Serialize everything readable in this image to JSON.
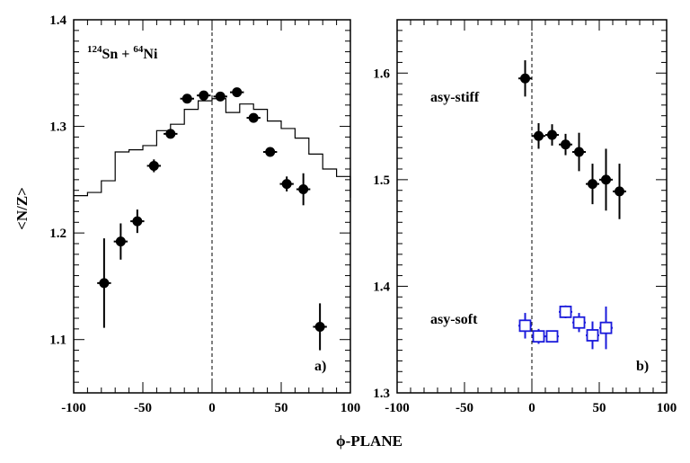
{
  "chart_data": [
    {
      "type": "scatter",
      "panel_label": "a)",
      "annotation": {
        "mass1": "124",
        "el1": "Sn",
        "plus": " + ",
        "mass2": "64",
        "el2": "Ni"
      },
      "xlim": [
        -100,
        100
      ],
      "ylim": [
        1.05,
        1.4
      ],
      "xticks": [
        "-100",
        "-50",
        "0",
        "50",
        "100"
      ],
      "yticks": [
        "1.1",
        "1.2",
        "1.3",
        "1.4"
      ],
      "ylabel": "<N/Z>",
      "grid": false,
      "reference_line_x": 0,
      "series": [
        {
          "style": "filled-circle",
          "color": "#000000",
          "points": [
            {
              "x": -78,
              "y": 1.153,
              "yerr": 0.042
            },
            {
              "x": -66,
              "y": 1.192,
              "yerr": 0.017
            },
            {
              "x": -54,
              "y": 1.211,
              "yerr": 0.011
            },
            {
              "x": -42,
              "y": 1.263,
              "yerr": 0.006
            },
            {
              "x": -30,
              "y": 1.293,
              "yerr": 0.004
            },
            {
              "x": -18,
              "y": 1.326,
              "yerr": 0.003
            },
            {
              "x": -6,
              "y": 1.329,
              "yerr": 0.003
            },
            {
              "x": 6,
              "y": 1.328,
              "yerr": 0.003
            },
            {
              "x": 18,
              "y": 1.332,
              "yerr": 0.003
            },
            {
              "x": 30,
              "y": 1.308,
              "yerr": 0.004
            },
            {
              "x": 42,
              "y": 1.276,
              "yerr": 0.004
            },
            {
              "x": 54,
              "y": 1.246,
              "yerr": 0.007
            },
            {
              "x": 66,
              "y": 1.241,
              "yerr": 0.015
            },
            {
              "x": 78,
              "y": 1.112,
              "yerr": 0.022
            }
          ]
        },
        {
          "style": "step-line",
          "color": "#000000",
          "edges": [
            -100,
            -90,
            -80,
            -70,
            -60,
            -50,
            -40,
            -30,
            -20,
            -10,
            0,
            10,
            20,
            30,
            40,
            50,
            60,
            70,
            80,
            90,
            100
          ],
          "values": [
            1.235,
            1.238,
            1.249,
            1.276,
            1.278,
            1.282,
            1.296,
            1.302,
            1.316,
            1.324,
            1.326,
            1.313,
            1.321,
            1.316,
            1.305,
            1.298,
            1.289,
            1.274,
            1.26,
            1.253,
            1.233
          ]
        }
      ]
    },
    {
      "type": "scatter",
      "panel_label": "b)",
      "xlim": [
        -100,
        100
      ],
      "ylim": [
        1.3,
        1.65
      ],
      "xticks": [
        "-100",
        "-50",
        "0",
        "50",
        "100"
      ],
      "yticks": [
        "1.3",
        "1.4",
        "1.5",
        "1.6"
      ],
      "grid": false,
      "reference_line_x": 0,
      "series": [
        {
          "name": "asy-stiff",
          "style": "filled-circle",
          "color": "#000000",
          "points": [
            {
              "x": -5,
              "y": 1.595,
              "yerr": 0.017
            },
            {
              "x": 5,
              "y": 1.541,
              "yerr": 0.012
            },
            {
              "x": 15,
              "y": 1.542,
              "yerr": 0.01
            },
            {
              "x": 25,
              "y": 1.533,
              "yerr": 0.01
            },
            {
              "x": 35,
              "y": 1.526,
              "yerr": 0.018
            },
            {
              "x": 45,
              "y": 1.496,
              "yerr": 0.019
            },
            {
              "x": 55,
              "y": 1.5,
              "yerr": 0.029
            },
            {
              "x": 65,
              "y": 1.489,
              "yerr": 0.026
            }
          ]
        },
        {
          "name": "asy-soft",
          "style": "open-square",
          "color": "#1a1adb",
          "points": [
            {
              "x": -5,
              "y": 1.363,
              "yerr": 0.012
            },
            {
              "x": 5,
              "y": 1.353,
              "yerr": 0.007
            },
            {
              "x": 15,
              "y": 1.353,
              "yerr": 0.005
            },
            {
              "x": 25,
              "y": 1.376,
              "yerr": 0.006
            },
            {
              "x": 35,
              "y": 1.366,
              "yerr": 0.009
            },
            {
              "x": 45,
              "y": 1.354,
              "yerr": 0.013
            },
            {
              "x": 55,
              "y": 1.361,
              "yerr": 0.02
            }
          ]
        }
      ]
    }
  ],
  "xlabel": "ϕ-PLANE"
}
